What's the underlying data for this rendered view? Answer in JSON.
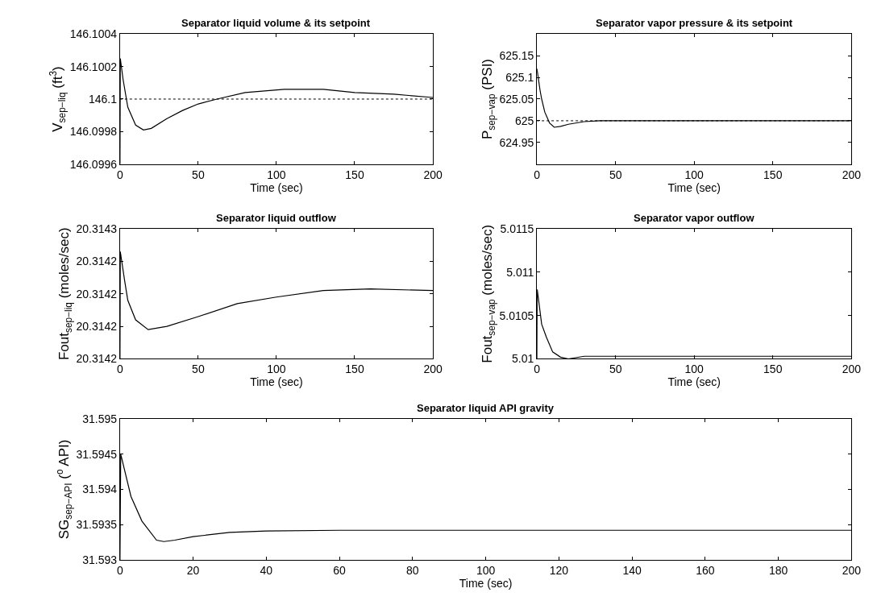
{
  "chart_data": [
    {
      "type": "line",
      "title": "Separator liquid volume & its setpoint",
      "xlabel": "Time (sec)",
      "ylabel": "V$_{sep−liq}$ (ft$^{3}$)",
      "x": [
        0,
        0.2,
        2,
        5,
        10,
        15,
        20,
        30,
        40,
        50,
        62,
        80,
        105,
        130,
        150,
        175,
        200
      ],
      "series": [
        {
          "color": "#000000",
          "values": [
            146.0996,
            146.10025,
            146.10012,
            146.09995,
            146.09984,
            146.09981,
            146.09982,
            146.09988,
            146.09993,
            146.09997,
            146.1,
            146.10004,
            146.10006,
            146.10006,
            146.10004,
            146.10003,
            146.10001
          ]
        }
      ],
      "xlim": [
        0,
        200
      ],
      "xticks": [
        0,
        50,
        100,
        150,
        200
      ],
      "ylim": [
        146.0996,
        146.1004
      ],
      "yticks": [
        146.0996,
        146.0998,
        146.1,
        146.1002,
        146.1004
      ],
      "ref_lines": [
        {
          "axis": "y",
          "value": 146.1,
          "line_style": "dotted",
          "color": "#000000"
        }
      ]
    },
    {
      "type": "line",
      "title": "Separator vapor pressure & its setpoint",
      "xlabel": "Time (sec)",
      "ylabel": "P$_{sep−vap}$ (PSI)",
      "x": [
        0,
        2,
        3,
        5,
        8,
        11,
        15,
        20,
        30,
        40,
        60,
        100,
        150,
        200
      ],
      "series": [
        {
          "color": "#000000",
          "values": [
            625.12,
            625.07,
            625.05,
            625.02,
            624.995,
            624.985,
            624.987,
            624.992,
            624.998,
            625.0,
            625.0,
            625.0,
            625.0,
            625.0
          ]
        }
      ],
      "xlim": [
        0,
        200
      ],
      "xticks": [
        0,
        50,
        100,
        150,
        200
      ],
      "ylim": [
        624.9,
        625.2
      ],
      "yticks": [
        624.95,
        625,
        625.05,
        625.1,
        625.15
      ],
      "ref_lines": [
        {
          "axis": "y",
          "value": 625,
          "line_style": "dotted",
          "color": "#000000"
        }
      ]
    },
    {
      "type": "line",
      "title": "Separator liquid outflow",
      "xlabel": "Time (sec)",
      "ylabel": "Fout$_{sep−liq}$ (moles/sec)",
      "x": [
        0,
        0.2,
        3,
        5,
        10,
        18,
        30,
        50,
        75,
        100,
        130,
        160,
        200
      ],
      "series": [
        {
          "color": "#000000",
          "values": [
            20.31421,
            20.314243,
            20.314234,
            20.314228,
            20.314222,
            20.314219,
            20.31422,
            20.314223,
            20.314227,
            20.314229,
            20.314231,
            20.3142315,
            20.314231
          ]
        }
      ],
      "xlim": [
        0,
        200
      ],
      "xticks": [
        0,
        50,
        100,
        150,
        200
      ],
      "ylim": [
        20.31421,
        20.31425
      ],
      "yticks": [
        {
          "value": 20.31421,
          "label": "20.3142"
        },
        {
          "value": 20.31422,
          "label": "20.3142"
        },
        {
          "value": 20.31423,
          "label": "20.3142"
        },
        {
          "value": 20.31424,
          "label": "20.3142"
        },
        {
          "value": 20.31425,
          "label": "20.3143"
        }
      ]
    },
    {
      "type": "line",
      "title": "Separator vapor outflow",
      "xlabel": "Time (sec)",
      "ylabel": "Fout$_{sep−vap}$ (moles/sec)",
      "x": [
        0,
        0.2,
        3,
        6,
        10,
        15,
        20,
        30,
        50,
        100,
        200
      ],
      "series": [
        {
          "color": "#000000",
          "values": [
            5.01,
            5.0108,
            5.0104,
            5.01025,
            5.01008,
            5.01002,
            5.01,
            5.01003,
            5.01003,
            5.01003,
            5.01003
          ]
        }
      ],
      "xlim": [
        0,
        200
      ],
      "xticks": [
        0,
        50,
        100,
        150,
        200
      ],
      "ylim": [
        5.01,
        5.0115
      ],
      "yticks": [
        5.01,
        5.0105,
        5.011,
        5.0115
      ]
    },
    {
      "type": "line",
      "title": "Separator liquid API gravity",
      "xlabel": "Time (sec)",
      "ylabel": "SG$_{sep−API}$ ($^{o}$ API)",
      "x": [
        0,
        0.2,
        3,
        6,
        10,
        12,
        15,
        20,
        30,
        40,
        60,
        100,
        200
      ],
      "series": [
        {
          "color": "#000000",
          "values": [
            31.593,
            31.5945,
            31.5939,
            31.59355,
            31.59328,
            31.59326,
            31.59328,
            31.59333,
            31.59339,
            31.59341,
            31.59342,
            31.59342,
            31.59342
          ]
        }
      ],
      "xlim": [
        0,
        200
      ],
      "xticks": [
        0,
        20,
        40,
        60,
        80,
        100,
        120,
        140,
        160,
        180,
        200
      ],
      "ylim": [
        31.593,
        31.595
      ],
      "yticks": [
        31.593,
        31.5935,
        31.594,
        31.5945,
        31.595
      ]
    }
  ]
}
